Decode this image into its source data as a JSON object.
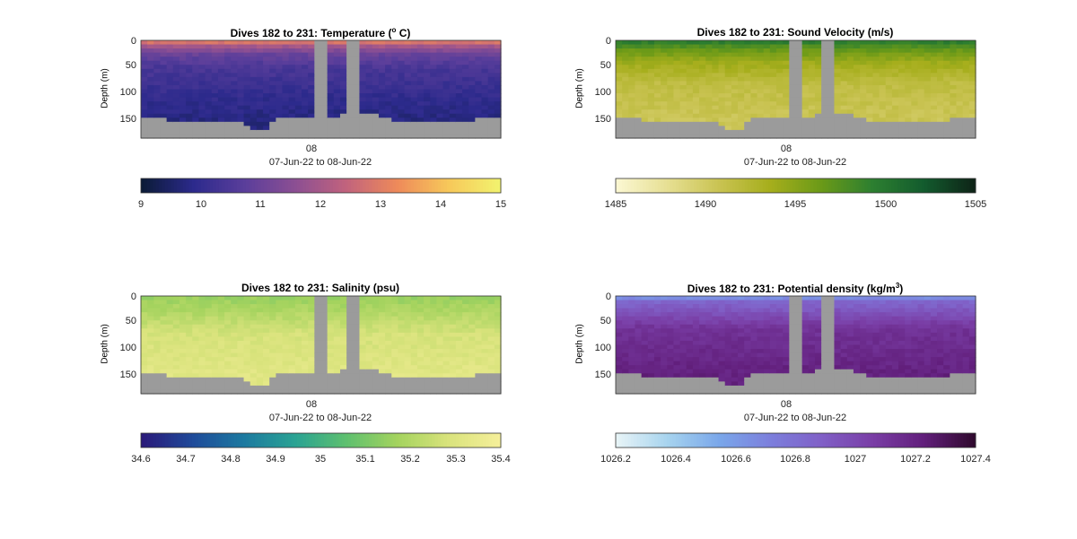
{
  "chart_data": [
    {
      "type": "heatmap",
      "title": "Dives 182 to 231: Temperature (",
      "title_sup": "o",
      "title_tail": " C)",
      "ylabel": "Depth (m)",
      "yticks": [
        "0",
        "50",
        "100",
        "150"
      ],
      "ylim": [
        180,
        0
      ],
      "xticks": [
        "08"
      ],
      "xlabel": "07-Jun-22 to 08-Jun-22",
      "colorbar": {
        "min": 9,
        "max": 15,
        "ticks": [
          "9",
          "10",
          "11",
          "12",
          "13",
          "14",
          "15"
        ]
      },
      "colormap": [
        "#0b1b38",
        "#2c2a8c",
        "#5a3e9b",
        "#8c4f93",
        "#c1637d",
        "#ee8a5a",
        "#f7c85a",
        "#f2f26e"
      ],
      "profile": [
        {
          "depth": 0,
          "value": 13.3
        },
        {
          "depth": 10,
          "value": 12.0
        },
        {
          "depth": 25,
          "value": 11.0
        },
        {
          "depth": 50,
          "value": 10.4
        },
        {
          "depth": 100,
          "value": 10.0
        },
        {
          "depth": 150,
          "value": 9.7
        }
      ]
    },
    {
      "type": "heatmap",
      "title": "Dives 182 to 231: Sound Velocity (m/s)",
      "ylabel": "Depth (m)",
      "yticks": [
        "0",
        "50",
        "100",
        "150"
      ],
      "ylim": [
        180,
        0
      ],
      "xticks": [
        "08"
      ],
      "xlabel": "07-Jun-22 to 08-Jun-22",
      "colorbar": {
        "min": 1485,
        "max": 1505,
        "ticks": [
          "1485",
          "1490",
          "1495",
          "1500",
          "1505"
        ]
      },
      "colormap": [
        "#fbf7d2",
        "#e6df92",
        "#c9c352",
        "#a6ae1c",
        "#6b9a18",
        "#2d7f30",
        "#135c2e",
        "#0e2417"
      ],
      "profile": [
        {
          "depth": 0,
          "value": 1500
        },
        {
          "depth": 15,
          "value": 1497
        },
        {
          "depth": 40,
          "value": 1494
        },
        {
          "depth": 80,
          "value": 1491.5
        },
        {
          "depth": 150,
          "value": 1490.5
        }
      ]
    },
    {
      "type": "heatmap",
      "title": "Dives 182 to 231: Salinity (psu)",
      "ylabel": "Depth (m)",
      "yticks": [
        "0",
        "50",
        "100",
        "150"
      ],
      "ylim": [
        180,
        0
      ],
      "xticks": [
        "08"
      ],
      "xlabel": "07-Jun-22 to 08-Jun-22",
      "colorbar": {
        "min": 34.6,
        "max": 35.4,
        "ticks": [
          "34.6",
          "34.7",
          "34.8",
          "34.9",
          "35",
          "35.1",
          "35.2",
          "35.3",
          "35.4"
        ]
      },
      "colormap": [
        "#2a1a7a",
        "#1f4b9a",
        "#1c7aa0",
        "#2aa393",
        "#5ec06f",
        "#a4d35e",
        "#d9e37c",
        "#f5ef9a"
      ],
      "profile": [
        {
          "depth": 0,
          "value": 35.15
        },
        {
          "depth": 30,
          "value": 35.2
        },
        {
          "depth": 70,
          "value": 35.28
        },
        {
          "depth": 150,
          "value": 35.32
        }
      ]
    },
    {
      "type": "heatmap",
      "title": "Dives 182 to 231: Potential density (kg/m",
      "title_sup": "3",
      "title_tail": ")",
      "ylabel": "Depth (m)",
      "yticks": [
        "0",
        "50",
        "100",
        "150"
      ],
      "ylim": [
        180,
        0
      ],
      "xticks": [
        "08"
      ],
      "xlabel": "07-Jun-22 to 08-Jun-22",
      "colorbar": {
        "min": 1026.2,
        "max": 1027.4,
        "ticks": [
          "1026.2",
          "1026.4",
          "1026.6",
          "1026.8",
          "1027",
          "1027.2",
          "1027.4"
        ]
      },
      "colormap": [
        "#e7f4f7",
        "#a6d3ee",
        "#7aa7ea",
        "#7c7fdc",
        "#8060c7",
        "#7a3ea6",
        "#621f7c",
        "#300a2e"
      ],
      "profile": [
        {
          "depth": 0,
          "value": 1026.55
        },
        {
          "depth": 10,
          "value": 1026.85
        },
        {
          "depth": 30,
          "value": 1026.95
        },
        {
          "depth": 60,
          "value": 1027.12
        },
        {
          "depth": 150,
          "value": 1027.22
        }
      ]
    }
  ]
}
